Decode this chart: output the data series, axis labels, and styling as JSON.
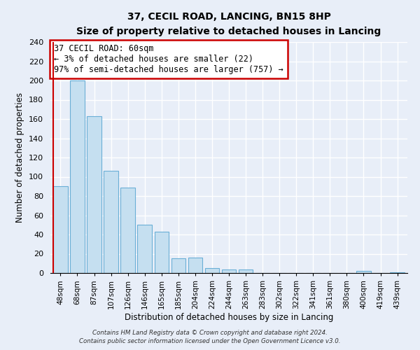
{
  "title": "37, CECIL ROAD, LANCING, BN15 8HP",
  "subtitle": "Size of property relative to detached houses in Lancing",
  "xlabel": "Distribution of detached houses by size in Lancing",
  "ylabel": "Number of detached properties",
  "bar_labels": [
    "48sqm",
    "68sqm",
    "87sqm",
    "107sqm",
    "126sqm",
    "146sqm",
    "165sqm",
    "185sqm",
    "204sqm",
    "224sqm",
    "244sqm",
    "263sqm",
    "283sqm",
    "302sqm",
    "322sqm",
    "341sqm",
    "361sqm",
    "380sqm",
    "400sqm",
    "419sqm",
    "439sqm"
  ],
  "bar_values": [
    90,
    200,
    163,
    106,
    89,
    50,
    43,
    15,
    16,
    5,
    4,
    4,
    0,
    0,
    0,
    0,
    0,
    0,
    2,
    0,
    1
  ],
  "bar_color": "#c5dff0",
  "bar_edge_color": "#6aafd6",
  "highlight_color": "#cc0000",
  "ylim": [
    0,
    240
  ],
  "yticks": [
    0,
    20,
    40,
    60,
    80,
    100,
    120,
    140,
    160,
    180,
    200,
    220,
    240
  ],
  "annotation_title": "37 CECIL ROAD: 60sqm",
  "annotation_line1": "← 3% of detached houses are smaller (22)",
  "annotation_line2": "97% of semi-detached houses are larger (757) →",
  "footer_line1": "Contains HM Land Registry data © Crown copyright and database right 2024.",
  "footer_line2": "Contains public sector information licensed under the Open Government Licence v3.0.",
  "bg_color": "#e8eef8",
  "grid_color": "#d0d8e8"
}
